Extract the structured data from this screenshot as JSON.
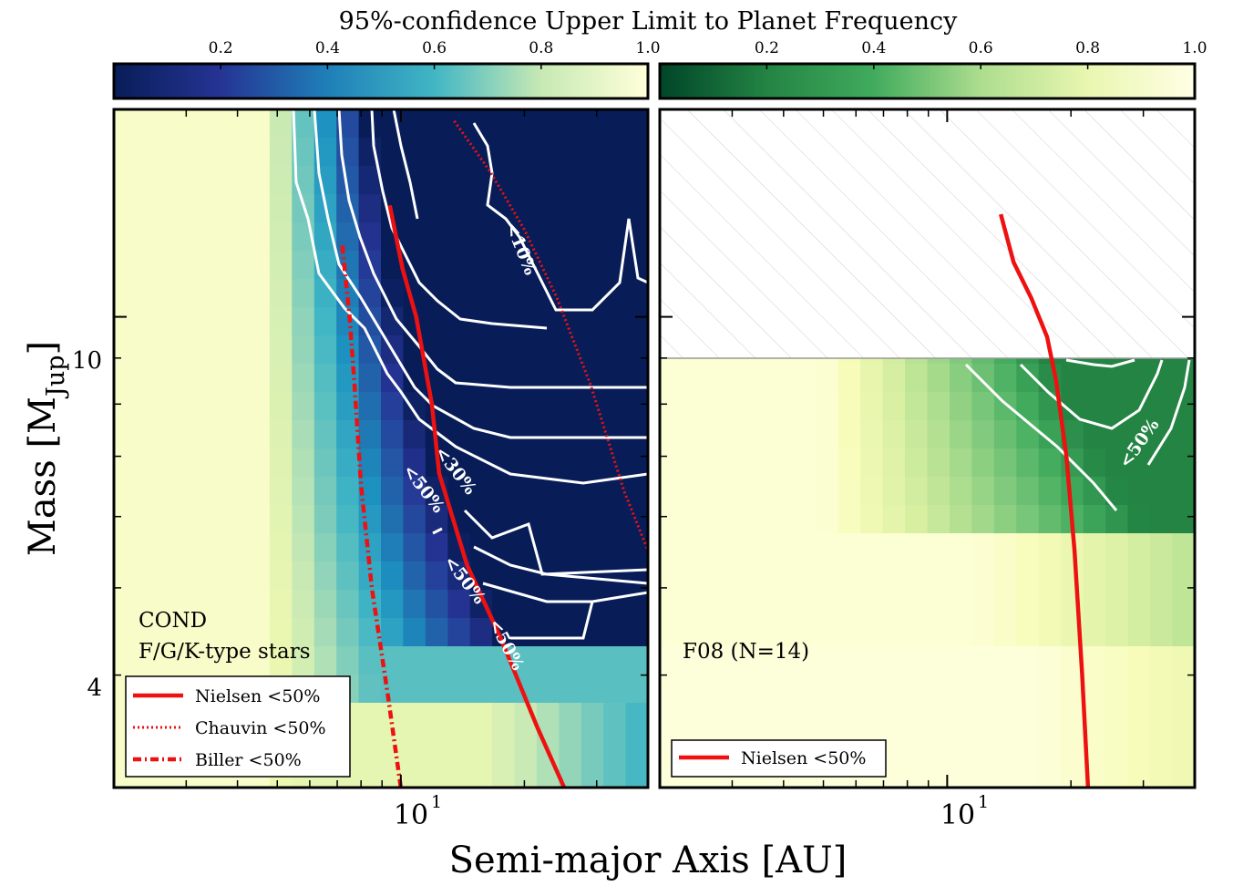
{
  "figure": {
    "colorbar_title": "95%-confidence Upper Limit to Planet Frequency",
    "xlabel": "Semi-major Axis [AU]",
    "ylabel_main": "Mass [M",
    "ylabel_sub": "Jup",
    "ylabel_close": "]",
    "x_tick_base": "10",
    "x_tick_exp": "1",
    "y_ticks": [
      "10",
      "4"
    ]
  },
  "colors": {
    "nielsen": "#ee1111",
    "chauvin": "#ee1111",
    "biller": "#ee1111",
    "contour": "#ffffff",
    "axes": "#000000",
    "hatch_line": "#cccccc"
  },
  "chart_data": [
    {
      "type": "heatmap",
      "panel": "left",
      "colormap": "YlGnBu_r",
      "colorbar_ticks": [
        "0.2",
        "0.4",
        "0.6",
        "0.8",
        "1.0"
      ],
      "colorbar_range": [
        0,
        1
      ],
      "annotation_lines": [
        "COND",
        "F/G/K-type stars"
      ],
      "x_scale": "log",
      "y_scale": "log",
      "xlim": [
        2,
        40
      ],
      "ylim": [
        3,
        17
      ],
      "contour_labels": [
        "<10%",
        "<30%",
        "<50%",
        "<50%",
        "<50%"
      ],
      "legend": [
        {
          "label": "Nielsen <50%",
          "style": "solid"
        },
        {
          "label": "Chauvin <50%",
          "style": "dotted"
        },
        {
          "label": "Biller <50%",
          "style": "dashdot"
        }
      ],
      "series": [
        {
          "name": "Nielsen <50%",
          "x": [
            9.4,
            10.1,
            10.9,
            11.9,
            12.4,
            14.5,
            17.5,
            21.5,
            25.0
          ],
          "y": [
            13.3,
            11.3,
            10.0,
            8.0,
            6.7,
            5.3,
            4.4,
            3.5,
            3.0
          ]
        },
        {
          "name": "Chauvin <50%",
          "x": [
            13.5,
            16.5,
            20.0,
            24.0,
            29.0,
            35.0,
            40.0
          ],
          "y": [
            16.5,
            14.5,
            12.5,
            10.5,
            8.4,
            6.4,
            5.5
          ]
        },
        {
          "name": "Biller <50%",
          "x": [
            7.2,
            7.5,
            7.7,
            8.0,
            8.5,
            9.3,
            10.0
          ],
          "y": [
            12.0,
            10.0,
            8.5,
            6.5,
            5.0,
            3.8,
            3.0
          ]
        }
      ]
    },
    {
      "type": "heatmap",
      "panel": "right",
      "colormap": "YlGn_r",
      "colorbar_ticks": [
        "0.2",
        "0.4",
        "0.6",
        "0.8",
        "1.0"
      ],
      "colorbar_range": [
        0,
        1
      ],
      "annotation_lines": [
        "F08 (N=14)"
      ],
      "x_scale": "log",
      "y_scale": "log",
      "xlim": [
        2,
        40
      ],
      "ylim": [
        3,
        17
      ],
      "hatched_above_mass": 10,
      "contour_labels": [
        "<50%"
      ],
      "legend": [
        {
          "label": "Nielsen <50%",
          "style": "solid"
        }
      ],
      "series": [
        {
          "name": "Nielsen <50%",
          "x": [
            13.5,
            14.5,
            16.0,
            17.5,
            18.4,
            19.5,
            20.4,
            21.3,
            22.0
          ],
          "y": [
            13.0,
            11.5,
            10.5,
            9.5,
            8.5,
            7.0,
            5.5,
            4.0,
            3.0
          ]
        }
      ]
    }
  ]
}
